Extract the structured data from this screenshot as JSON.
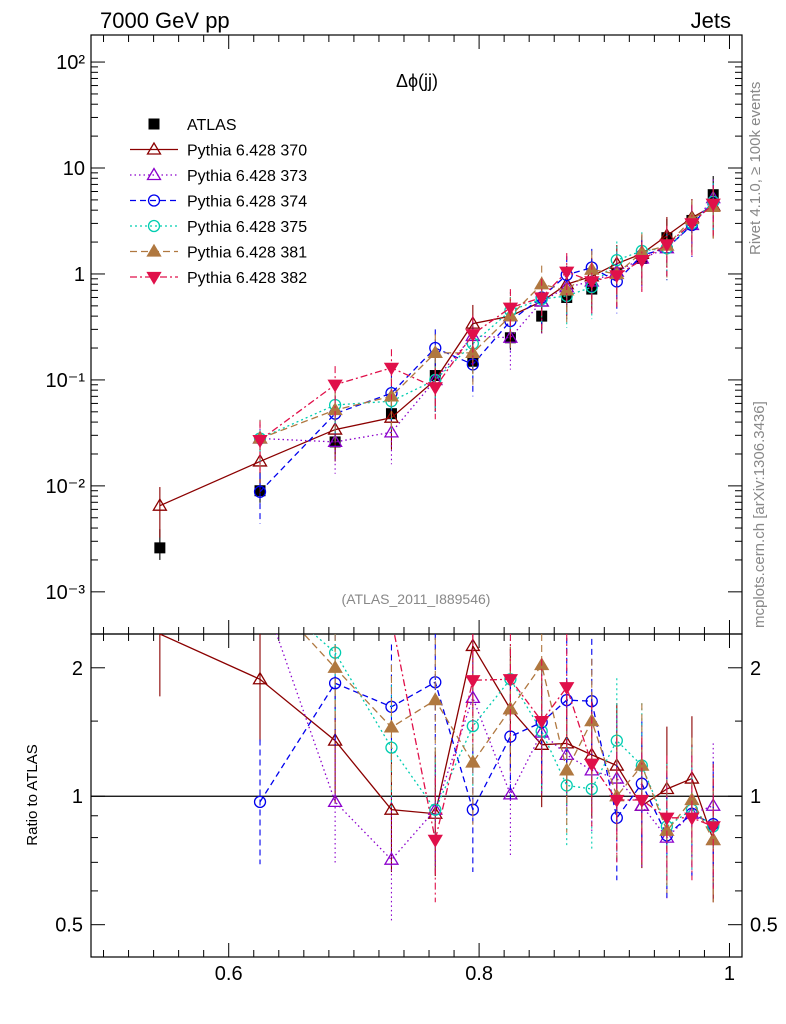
{
  "header": {
    "left": "7000 GeV pp",
    "right": "Jets"
  },
  "side": {
    "rivet": "Rivet 4.1.0, ≥ 100k events",
    "mcplots": "mcplots.cern.ch [arXiv:1306.3436]"
  },
  "colors": {
    "ATLAS": "#000000",
    "370": "#8b0000",
    "373": "#8b00cc",
    "374": "#0000ee",
    "375": "#00cdb0",
    "381": "#b07840",
    "382": "#e0104a"
  },
  "chart_data": [
    {
      "type": "scatter",
      "title": "Δϕ(jj)",
      "analysis": "(ATLAS_2011_I889546)",
      "xlim": [
        0.49,
        1.01
      ],
      "ylim_log": [
        0.0004,
        180
      ],
      "ytick_labels": [
        "10⁻³",
        "10⁻²",
        "10⁻¹",
        "1",
        "10",
        "10²"
      ],
      "xtick_labels": [
        "0.6",
        "0.8",
        "1"
      ],
      "legend": [
        "ATLAS",
        "Pythia 6.428 370",
        "Pythia 6.428 373",
        "Pythia 6.428 374",
        "Pythia 6.428 375",
        "Pythia 6.428 381",
        "Pythia 6.428 382"
      ],
      "series": [
        {
          "name": "ATLAS",
          "x": [
            0.545,
            0.625,
            0.685,
            0.73,
            0.765,
            0.795,
            0.825,
            0.85,
            0.87,
            0.89,
            0.91,
            0.93,
            0.95,
            0.97,
            0.987
          ],
          "y": [
            0.0026,
            0.009,
            0.026,
            0.048,
            0.11,
            0.15,
            0.25,
            0.4,
            0.6,
            0.72,
            1.0,
            1.4,
            2.2,
            3.2,
            5.6
          ]
        },
        {
          "name": "Pythia 6.428 370",
          "x": [
            0.545,
            0.625,
            0.685,
            0.73,
            0.765,
            0.795,
            0.825,
            0.85,
            0.87,
            0.89,
            0.91,
            0.93,
            0.95,
            0.97,
            0.987
          ],
          "y": [
            0.0065,
            0.017,
            0.034,
            0.044,
            0.1,
            0.34,
            0.4,
            0.55,
            0.8,
            0.95,
            1.25,
            1.55,
            2.3,
            3.4,
            4.4
          ]
        },
        {
          "name": "Pythia 6.428 373",
          "x": [
            0.625,
            0.685,
            0.73,
            0.765,
            0.795,
            0.825,
            0.85,
            0.87,
            0.89,
            0.91,
            0.93,
            0.95,
            0.97,
            0.987
          ],
          "y": [
            0.028,
            0.026,
            0.032,
            0.1,
            0.26,
            0.25,
            0.55,
            0.75,
            0.85,
            1.05,
            1.4,
            1.75,
            2.9,
            5.2
          ]
        },
        {
          "name": "Pythia 6.428 374",
          "x": [
            0.625,
            0.685,
            0.73,
            0.765,
            0.795,
            0.825,
            0.85,
            0.87,
            0.89,
            0.91,
            0.93,
            0.95,
            0.97,
            0.987
          ],
          "y": [
            0.0088,
            0.048,
            0.075,
            0.2,
            0.14,
            0.36,
            0.6,
            0.98,
            1.15,
            0.85,
            1.5,
            1.75,
            2.9,
            4.8
          ]
        },
        {
          "name": "Pythia 6.428 375",
          "x": [
            0.625,
            0.685,
            0.73,
            0.765,
            0.795,
            0.825,
            0.85,
            0.87,
            0.89,
            0.91,
            0.93,
            0.95,
            0.97,
            0.987
          ],
          "y": [
            0.028,
            0.058,
            0.063,
            0.1,
            0.22,
            0.45,
            0.58,
            0.62,
            0.75,
            1.35,
            1.65,
            1.75,
            3.0,
            4.8
          ]
        },
        {
          "name": "Pythia 6.428 381",
          "x": [
            0.625,
            0.685,
            0.73,
            0.765,
            0.795,
            0.825,
            0.85,
            0.87,
            0.89,
            0.91,
            0.93,
            0.95,
            0.97,
            0.987
          ],
          "y": [
            0.028,
            0.052,
            0.07,
            0.18,
            0.18,
            0.4,
            0.8,
            0.7,
            1.1,
            1.0,
            1.6,
            1.85,
            3.3,
            4.3
          ]
        },
        {
          "name": "Pythia 6.428 382",
          "x": [
            0.625,
            0.685,
            0.73,
            0.765,
            0.795,
            0.825,
            0.85,
            0.87,
            0.89,
            0.91,
            0.93,
            0.95,
            0.97,
            0.987
          ],
          "y": [
            0.027,
            0.09,
            0.13,
            0.085,
            0.27,
            0.48,
            0.6,
            1.05,
            0.85,
            0.97,
            1.35,
            1.9,
            3.0,
            4.6
          ]
        }
      ]
    },
    {
      "type": "line",
      "ylabel": "Ratio to ATLAS",
      "xlim": [
        0.49,
        1.01
      ],
      "ylim_log": [
        0.42,
        2.4
      ],
      "ytick_labels": [
        "0.5",
        "1",
        "2"
      ],
      "xtick_labels": [
        "0.6",
        "0.8",
        "1"
      ],
      "series": [
        {
          "name": "Pythia 6.428 370",
          "x": [
            0.545,
            0.625,
            0.685,
            0.73,
            0.765,
            0.795,
            0.825,
            0.85,
            0.87,
            0.89,
            0.91,
            0.93,
            0.95,
            0.97,
            0.987
          ],
          "y": [
            2.4,
            1.88,
            1.35,
            0.93,
            0.91,
            2.25,
            1.6,
            1.32,
            1.33,
            1.25,
            1.18,
            0.95,
            1.04,
            1.1,
            0.79
          ]
        },
        {
          "name": "Pythia 6.428 373",
          "x": [
            0.625,
            0.685,
            0.73,
            0.765,
            0.795,
            0.825,
            0.85,
            0.87,
            0.89,
            0.91,
            0.93,
            0.95,
            0.97,
            0.987
          ],
          "y": [
            3.1,
            0.97,
            0.71,
            0.93,
            1.7,
            1.01,
            1.41,
            1.25,
            1.15,
            1.1,
            0.95,
            0.8,
            0.91,
            0.95
          ]
        },
        {
          "name": "Pythia 6.428 374",
          "x": [
            0.625,
            0.685,
            0.73,
            0.765,
            0.795,
            0.825,
            0.85,
            0.87,
            0.89,
            0.91,
            0.93,
            0.95,
            0.97,
            0.987
          ],
          "y": [
            0.97,
            1.84,
            1.62,
            1.85,
            0.93,
            1.38,
            1.49,
            1.68,
            1.67,
            0.89,
            1.07,
            0.81,
            0.91,
            0.86
          ]
        },
        {
          "name": "Pythia 6.428 375",
          "x": [
            0.625,
            0.685,
            0.73,
            0.765,
            0.795,
            0.825,
            0.85,
            0.87,
            0.89,
            0.91,
            0.93,
            0.95,
            0.97,
            0.987
          ],
          "y": [
            3.1,
            2.17,
            1.3,
            0.93,
            1.46,
            1.88,
            1.42,
            1.06,
            1.04,
            1.35,
            1.18,
            0.85,
            0.93,
            0.85
          ]
        },
        {
          "name": "Pythia 6.428 381",
          "x": [
            0.625,
            0.685,
            0.73,
            0.765,
            0.795,
            0.825,
            0.85,
            0.87,
            0.89,
            0.91,
            0.93,
            0.95,
            0.97,
            0.987
          ],
          "y": [
            3.1,
            2.0,
            1.45,
            1.68,
            1.2,
            1.6,
            2.03,
            1.15,
            1.5,
            1.0,
            1.18,
            0.83,
            0.98,
            0.79
          ]
        },
        {
          "name": "Pythia 6.428 382",
          "x": [
            0.625,
            0.685,
            0.73,
            0.765,
            0.795,
            0.825,
            0.85,
            0.87,
            0.89,
            0.91,
            0.93,
            0.95,
            0.97,
            0.987
          ],
          "y": [
            3.0,
            3.3,
            2.6,
            0.79,
            1.87,
            1.88,
            1.5,
            1.8,
            1.19,
            0.98,
            0.98,
            0.89,
            0.89,
            0.85
          ]
        }
      ]
    }
  ]
}
